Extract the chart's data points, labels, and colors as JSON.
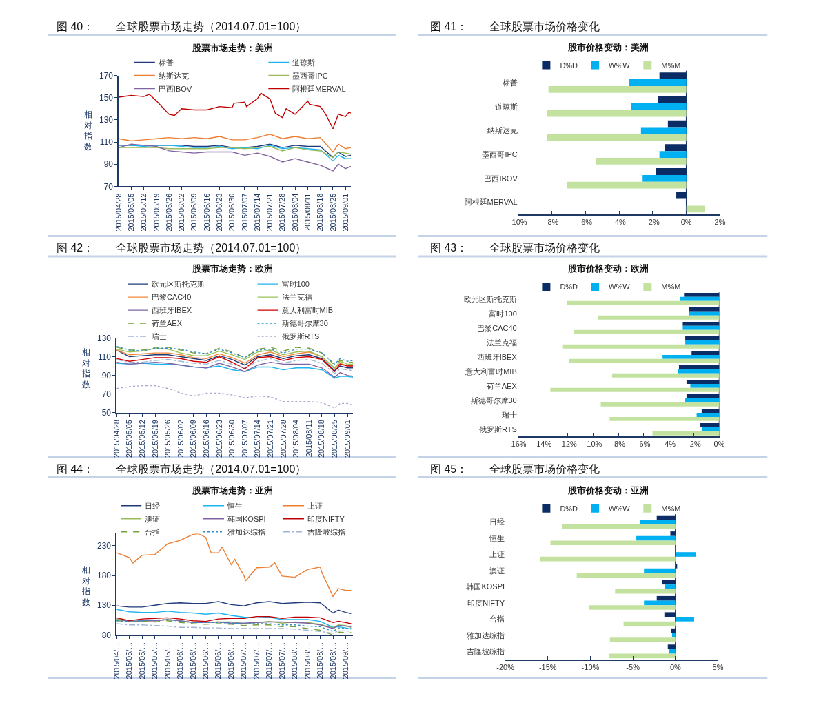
{
  "chart_data": [
    {
      "type": "line",
      "title": "图 40：　　全球股票市场走势（2014.07.01=100）",
      "subtitle": "股票市场走势：美洲",
      "ylabel": "相对指数",
      "legend": "top",
      "x": [
        "2015-04-28",
        "2015-05-05",
        "2015-05-12",
        "2015-05-19",
        "2015-05-26",
        "2015-06-02",
        "2015-06-09",
        "2015-06-16",
        "2015-06-23",
        "2015-06-30",
        "2015-07-07",
        "2015-07-14",
        "2015-07-21",
        "2015-07-28",
        "2015-08-04",
        "2015-08-11",
        "2015-08-18",
        "2015-08-25",
        "2015-08-28",
        "2015-09-01",
        "2015-09-04"
      ],
      "xlim": [
        "2015-04-28",
        "2015-09-04"
      ],
      "xticks": [
        {
          "value": "2015-04-28",
          "label": "2015/04/28"
        },
        {
          "value": "2015-05-05",
          "label": "2015/05/05"
        },
        {
          "value": "2015-05-12",
          "label": "2015/05/12"
        },
        {
          "value": "2015-05-19",
          "label": "2015/05/19"
        },
        {
          "value": "2015-05-26",
          "label": "2015/05/26"
        },
        {
          "value": "2015-06-02",
          "label": "2015/06/02"
        },
        {
          "value": "2015-06-09",
          "label": "2015/06/09"
        },
        {
          "value": "2015-06-16",
          "label": "2015/06/16"
        },
        {
          "value": "2015-06-23",
          "label": "2015/06/23"
        },
        {
          "value": "2015-06-30",
          "label": "2015/06/30"
        },
        {
          "value": "2015-07-07",
          "label": "2015/07/07"
        },
        {
          "value": "2015-07-14",
          "label": "2015/07/14"
        },
        {
          "value": "2015-07-21",
          "label": "2015/07/21"
        },
        {
          "value": "2015-07-28",
          "label": "2015/07/28"
        },
        {
          "value": "2015-08-04",
          "label": "2015/08/04"
        },
        {
          "value": "2015-08-11",
          "label": "2015/08/11"
        },
        {
          "value": "2015-08-18",
          "label": "2015/08/18"
        },
        {
          "value": "2015-08-25",
          "label": "2015/08/25"
        },
        {
          "value": "2015-09-01",
          "label": "2015/09/01"
        }
      ],
      "ylim": [
        70,
        170
      ],
      "yticks": [
        70,
        90,
        110,
        130,
        150,
        170
      ],
      "series": [
        {
          "name": "标普",
          "color": "#1f3a7a",
          "values": [
            107,
            107,
            107,
            107,
            107,
            107,
            106,
            106,
            107,
            105,
            105,
            106,
            108,
            105,
            107,
            106,
            106,
            96,
            101,
            97,
            98
          ]
        },
        {
          "name": "道琼斯",
          "color": "#1eb4f0",
          "values": [
            107,
            107,
            106,
            107,
            107,
            106,
            105,
            105,
            106,
            104,
            105,
            104,
            107,
            104,
            105,
            104,
            103,
            93,
            98,
            95,
            95
          ]
        },
        {
          "name": "纳斯达克",
          "color": "#ed7d31",
          "values": [
            113,
            111,
            112,
            113,
            114,
            113,
            114,
            113,
            115,
            112,
            112,
            114,
            117,
            113,
            115,
            113,
            114,
            101,
            108,
            104,
            105
          ]
        },
        {
          "name": "墨西哥IPC",
          "color": "#9bbb59",
          "values": [
            105,
            105,
            105,
            105,
            104,
            104,
            104,
            104,
            105,
            105,
            104,
            105,
            106,
            102,
            105,
            103,
            102,
            96,
            101,
            100,
            99
          ]
        },
        {
          "name": "巴西IBOV",
          "color": "#8064a2",
          "values": [
            105,
            108,
            107,
            106,
            102,
            101,
            100,
            101,
            101,
            101,
            98,
            100,
            97,
            92,
            95,
            92,
            89,
            84,
            90,
            86,
            88
          ]
        },
        {
          "name": "阿根廷MERVAL",
          "color": "#c00000",
          "x": [
            "2015-04-28",
            "2015-05-05",
            "2015-05-12",
            "2015-05-15",
            "2015-05-19",
            "2015-05-26",
            "2015-05-29",
            "2015-06-02",
            "2015-06-09",
            "2015-06-16",
            "2015-06-23",
            "2015-06-30",
            "2015-07-01",
            "2015-07-07",
            "2015-07-08",
            "2015-07-14",
            "2015-07-16",
            "2015-07-21",
            "2015-07-24",
            "2015-07-28",
            "2015-07-30",
            "2015-08-04",
            "2015-08-07",
            "2015-08-11",
            "2015-08-12",
            "2015-08-18",
            "2015-08-21",
            "2015-08-25",
            "2015-08-28",
            "2015-09-01",
            "2015-09-03",
            "2015-09-04"
          ],
          "values": [
            150.5,
            152,
            151,
            153,
            147,
            135,
            134,
            140,
            139,
            139,
            142,
            141,
            145,
            146,
            142,
            149,
            154,
            149,
            136,
            132,
            140,
            135,
            140,
            147,
            144,
            142,
            135,
            122,
            135,
            133,
            137,
            136
          ]
        }
      ]
    },
    {
      "type": "bar",
      "orientation": "horizontal",
      "title": "图 41：　　全球股票市场价格变化",
      "subtitle": "股市价格变动：美洲",
      "legend": "top",
      "categories": [
        "标普",
        "道琼斯",
        "纳斯达克",
        "墨西哥IPC",
        "巴西IBOV",
        "阿根廷MERVAL"
      ],
      "ref_lines": [
        {
          "axis": "x",
          "value": 0,
          "color": "#1f3864"
        }
      ],
      "xlim": [
        -10,
        2
      ],
      "xticks": [
        {
          "value": -10,
          "label": "-10%"
        },
        {
          "value": -8,
          "label": "-8%"
        },
        {
          "value": -6,
          "label": "-6%"
        },
        {
          "value": -4,
          "label": "-4%"
        },
        {
          "value": -2,
          "label": "-2%"
        },
        {
          "value": 0,
          "label": "0%"
        },
        {
          "value": 2,
          "label": "2%"
        }
      ],
      "series": [
        {
          "name": "D%D",
          "color": "#0b2c64",
          "values": [
            -1.6,
            -1.7,
            -1.1,
            -1.3,
            -1.8,
            -0.6
          ]
        },
        {
          "name": "W%W",
          "color": "#00b0f0",
          "values": [
            -3.4,
            -3.3,
            -2.7,
            -1.6,
            -2.6,
            null
          ]
        },
        {
          "name": "M%M",
          "color": "#c3e2a0",
          "values": [
            -8.2,
            -8.3,
            -8.3,
            -5.4,
            -7.1,
            1.1
          ]
        }
      ]
    },
    {
      "type": "line",
      "title": "图 42：　　全球股票市场走势（2014.07.01=100）",
      "subtitle": "股票市场走势：欧洲",
      "ylabel": "相对指数",
      "legend": "top",
      "x": [
        "2015-04-28",
        "2015-05-05",
        "2015-05-12",
        "2015-05-19",
        "2015-05-26",
        "2015-06-02",
        "2015-06-09",
        "2015-06-16",
        "2015-06-23",
        "2015-06-30",
        "2015-07-07",
        "2015-07-14",
        "2015-07-21",
        "2015-07-28",
        "2015-08-04",
        "2015-08-11",
        "2015-08-18",
        "2015-08-25",
        "2015-08-28",
        "2015-09-01",
        "2015-09-04"
      ],
      "xlim": [
        "2015-04-28",
        "2015-09-04"
      ],
      "xticks": [
        {
          "value": "2015-04-28",
          "label": "2015/04/28"
        },
        {
          "value": "2015-05-05",
          "label": "2015/05/05"
        },
        {
          "value": "2015-05-12",
          "label": "2015/05/12"
        },
        {
          "value": "2015-05-19",
          "label": "2015/05/19"
        },
        {
          "value": "2015-05-26",
          "label": "2015/05/26"
        },
        {
          "value": "2015-06-02",
          "label": "2015/06/02"
        },
        {
          "value": "2015-06-09",
          "label": "2015/06/09"
        },
        {
          "value": "2015-06-16",
          "label": "2015/06/16"
        },
        {
          "value": "2015-06-23",
          "label": "2015/06/23"
        },
        {
          "value": "2015-06-30",
          "label": "2015/06/30"
        },
        {
          "value": "2015-07-07",
          "label": "2015/07/07"
        },
        {
          "value": "2015-07-14",
          "label": "2015/07/14"
        },
        {
          "value": "2015-07-21",
          "label": "2015/07/21"
        },
        {
          "value": "2015-07-28",
          "label": "2015/07/28"
        },
        {
          "value": "2015-08-04",
          "label": "2015/08/04"
        },
        {
          "value": "2015-08-11",
          "label": "2015/08/11"
        },
        {
          "value": "2015-08-18",
          "label": "2015/08/18"
        },
        {
          "value": "2015-08-25",
          "label": "2015/08/25"
        },
        {
          "value": "2015-09-01",
          "label": "2015/09/01"
        }
      ],
      "ylim": [
        50,
        130
      ],
      "yticks": [
        50,
        70,
        90,
        110,
        130
      ],
      "series": [
        {
          "name": "欧元区斯托克斯",
          "color": "#1f3a7a",
          "values": [
            117,
            110,
            111,
            112,
            112,
            110,
            108,
            106,
            111,
            107,
            101,
            110,
            112,
            108,
            111,
            112,
            108,
            95,
            100,
            98,
            98
          ]
        },
        {
          "name": "富时100",
          "color": "#1eb4f0",
          "values": [
            103,
            102,
            103,
            102,
            102,
            101,
            99,
            98,
            100,
            96,
            94,
            99,
            99,
            96,
            98,
            98,
            96,
            87,
            89,
            89,
            88
          ]
        },
        {
          "name": "巴黎CAC40",
          "color": "#f0883a",
          "values": [
            117,
            112,
            113,
            114,
            114,
            112,
            109,
            108,
            113,
            109,
            103,
            112,
            115,
            110,
            113,
            115,
            110,
            97,
            103,
            100,
            101
          ]
        },
        {
          "name": "法兰克福",
          "color": "#9bc35a",
          "values": [
            118,
            115,
            116,
            119,
            118,
            114,
            111,
            111,
            116,
            112,
            107,
            115,
            117,
            112,
            115,
            116,
            110,
            98,
            105,
            102,
            102
          ]
        },
        {
          "name": "西班牙IBEX",
          "color": "#8064a2",
          "values": [
            104,
            102,
            103,
            104,
            103,
            101,
            99,
            98,
            103,
            99,
            94,
            101,
            104,
            102,
            102,
            102,
            98,
            88,
            93,
            90,
            89
          ]
        },
        {
          "name": "意大利富时MIB",
          "color": "#d00000",
          "values": [
            108,
            105,
            107,
            109,
            109,
            108,
            105,
            104,
            110,
            104,
            97,
            109,
            110,
            106,
            109,
            110,
            107,
            94,
            102,
            100,
            100
          ]
        },
        {
          "name": "荷兰AEX",
          "color": "#77a03a",
          "line_style": "dashed",
          "values": [
            120,
            117,
            117,
            120,
            120,
            117,
            114,
            113,
            119,
            115,
            109,
            118,
            120,
            116,
            120,
            119,
            114,
            101,
            106,
            104,
            104
          ]
        },
        {
          "name": "斯德哥尔摩30",
          "color": "#2e8fc0",
          "line_style": "dotted",
          "values": [
            121,
            117,
            116,
            119,
            119,
            118,
            115,
            113,
            118,
            114,
            109,
            117,
            118,
            114,
            118,
            118,
            114,
            102,
            108,
            105,
            106
          ]
        },
        {
          "name": "瑞士",
          "color": "#a0b4d8",
          "line_style": "dashdot",
          "values": [
            107,
            104,
            104,
            106,
            107,
            105,
            103,
            102,
            106,
            102,
            98,
            105,
            108,
            103,
            106,
            107,
            103,
            92,
            97,
            96,
            95
          ]
        },
        {
          "name": "俄罗斯RTS",
          "color": "#b3a2d0",
          "line_style": "dotted",
          "values": [
            76,
            78,
            79,
            79,
            76,
            71,
            68,
            71,
            71,
            69,
            66,
            68,
            67,
            62,
            62,
            62,
            61,
            55,
            60,
            60,
            58
          ]
        }
      ]
    },
    {
      "type": "bar",
      "orientation": "horizontal",
      "title": "图 43：　　全球股票市场价格变化",
      "subtitle": "股市价格变动：欧洲",
      "legend": "top",
      "categories": [
        "欧元区斯托克斯",
        "富时100",
        "巴黎CAC40",
        "法兰克福",
        "西班牙IBEX",
        "意大利富时MIB",
        "荷兰AEX",
        "斯德哥尔摩30",
        "瑞士",
        "俄罗斯RTS"
      ],
      "ref_lines": [
        {
          "axis": "x",
          "value": 0,
          "color": "#1f3864"
        }
      ],
      "xlim": [
        -16,
        0
      ],
      "xticks": [
        {
          "value": -16,
          "label": "-16%"
        },
        {
          "value": -14,
          "label": "-14%"
        },
        {
          "value": -12,
          "label": "-12%"
        },
        {
          "value": -10,
          "label": "-10%"
        },
        {
          "value": -8,
          "label": "-8%"
        },
        {
          "value": -6,
          "label": "-6%"
        },
        {
          "value": -4,
          "label": "-4%"
        },
        {
          "value": -2,
          "label": "-2%"
        },
        {
          "value": 0,
          "label": "0%"
        }
      ],
      "series": [
        {
          "name": "D%D",
          "color": "#0b2c64",
          "values": [
            -2.8,
            -2.4,
            -2.9,
            -2.7,
            -2.2,
            -3.2,
            -2.6,
            -2.6,
            -1.4,
            -1.5
          ]
        },
        {
          "name": "W%W",
          "color": "#00b0f0",
          "values": [
            -3.1,
            -2.4,
            -2.9,
            -2.7,
            -4.5,
            -3.3,
            -2.3,
            -2.7,
            -1.8,
            -1.4
          ]
        },
        {
          "name": "M%M",
          "color": "#c3e2a0",
          "values": [
            -12.1,
            -9.6,
            -11.5,
            -12.4,
            -11.9,
            -8.5,
            -13.4,
            -9.4,
            -8.7,
            -5.3
          ]
        }
      ]
    },
    {
      "type": "line",
      "title": "图 44：　　全球股票市场走势（2014.07.01=100）",
      "subtitle": "股票市场走势：亚洲",
      "ylabel": "相对指数",
      "legend": "top",
      "x": [
        "2015-04-28",
        "2015-05-05",
        "2015-05-12",
        "2015-05-19",
        "2015-05-26",
        "2015-06-02",
        "2015-06-09",
        "2015-06-16",
        "2015-06-23",
        "2015-06-30",
        "2015-07-07",
        "2015-07-14",
        "2015-07-21",
        "2015-07-28",
        "2015-08-04",
        "2015-08-11",
        "2015-08-18",
        "2015-08-25",
        "2015-08-28",
        "2015-09-01",
        "2015-09-04"
      ],
      "xlim": [
        "2015-04-28",
        "2015-09-05"
      ],
      "xticks": [
        {
          "value": "2015-04-28",
          "label": "2015/04/…"
        },
        {
          "value": "2015-05-05",
          "label": "2015/05/…"
        },
        {
          "value": "2015-05-12",
          "label": "2015/05/…"
        },
        {
          "value": "2015-05-19",
          "label": "2015/05/…"
        },
        {
          "value": "2015-05-26",
          "label": "2015/05/…"
        },
        {
          "value": "2015-06-02",
          "label": "2015/06/…"
        },
        {
          "value": "2015-06-09",
          "label": "2015/06/…"
        },
        {
          "value": "2015-06-16",
          "label": "2015/06/…"
        },
        {
          "value": "2015-06-23",
          "label": "2015/06/…"
        },
        {
          "value": "2015-06-30",
          "label": "2015/06/…"
        },
        {
          "value": "2015-07-07",
          "label": "2015/07/…"
        },
        {
          "value": "2015-07-14",
          "label": "2015/07/…"
        },
        {
          "value": "2015-07-21",
          "label": "2015/07/…"
        },
        {
          "value": "2015-07-28",
          "label": "2015/07/…"
        },
        {
          "value": "2015-08-04",
          "label": "2015/08/…"
        },
        {
          "value": "2015-08-11",
          "label": "2015/08/…"
        },
        {
          "value": "2015-08-18",
          "label": "2015/08/…"
        },
        {
          "value": "2015-08-25",
          "label": "2015/08/…"
        },
        {
          "value": "2015-09-01",
          "label": "2015/09/…"
        }
      ],
      "ylim": [
        80,
        250
      ],
      "yticks": [
        80,
        130,
        180,
        230
      ],
      "series": [
        {
          "name": "日经",
          "color": "#1f3a7a",
          "values": [
            129,
            127,
            127,
            130,
            133,
            134,
            133,
            133,
            136,
            131,
            129,
            134,
            136,
            133,
            134,
            135,
            134,
            117,
            122,
            118,
            116
          ]
        },
        {
          "name": "恒生",
          "color": "#1eb4f0",
          "values": [
            123,
            119,
            118,
            118,
            120,
            118,
            117,
            115,
            117,
            113,
            110,
            109,
            110,
            106,
            106,
            106,
            103,
            93,
            94,
            92,
            90
          ]
        },
        {
          "name": "上证",
          "color": "#ed7d31",
          "x": [
            "2015-04-28",
            "2015-05-05",
            "2015-05-07",
            "2015-05-12",
            "2015-05-19",
            "2015-05-26",
            "2015-06-02",
            "2015-06-09",
            "2015-06-12",
            "2015-06-16",
            "2015-06-19",
            "2015-06-23",
            "2015-06-25",
            "2015-06-30",
            "2015-07-02",
            "2015-07-07",
            "2015-07-08",
            "2015-07-14",
            "2015-07-21",
            "2015-07-24",
            "2015-07-28",
            "2015-08-04",
            "2015-08-11",
            "2015-08-18",
            "2015-08-19",
            "2015-08-25",
            "2015-08-28",
            "2015-09-01",
            "2015-09-04"
          ],
          "values": [
            218,
            210,
            201,
            214,
            215,
            233,
            239,
            249,
            250,
            244,
            218,
            218,
            228,
            198,
            207,
            180,
            171,
            193,
            194,
            201,
            179,
            177,
            190,
            194,
            184,
            145,
            158,
            155,
            155
          ]
        },
        {
          "name": "澳证",
          "color": "#9bbb59",
          "values": [
            108,
            102,
            104,
            104,
            106,
            104,
            101,
            101,
            102,
            102,
            99,
            101,
            103,
            100,
            102,
            101,
            98,
            92,
            97,
            96,
            93
          ]
        },
        {
          "name": "韩国KOSPI",
          "color": "#8064a2",
          "values": [
            106,
            103,
            104,
            104,
            106,
            104,
            101,
            101,
            102,
            100,
            100,
            101,
            102,
            102,
            101,
            100,
            97,
            91,
            96,
            95,
            94
          ]
        },
        {
          "name": "印度NIFTY",
          "color": "#c00000",
          "values": [
            109,
            104,
            107,
            108,
            109,
            107,
            104,
            103,
            107,
            108,
            108,
            111,
            111,
            108,
            110,
            110,
            109,
            101,
            103,
            101,
            99
          ]
        },
        {
          "name": "台指",
          "color": "#77a03a",
          "line_style": "dashed",
          "values": [
            104,
            103,
            103,
            102,
            104,
            101,
            99,
            98,
            99,
            98,
            96,
            97,
            97,
            94,
            94,
            91,
            88,
            80,
            85,
            84,
            84
          ]
        },
        {
          "name": "雅加达综指",
          "color": "#2e8fc0",
          "line_style": "dotted",
          "values": [
            104,
            103,
            104,
            105,
            106,
            103,
            101,
            101,
            101,
            100,
            99,
            99,
            99,
            97,
            97,
            95,
            94,
            86,
            92,
            91,
            91
          ]
        },
        {
          "name": "吉隆坡综指",
          "color": "#a0b4d8",
          "line_style": "dashdot",
          "values": [
            99,
            97,
            97,
            96,
            95,
            93,
            93,
            92,
            92,
            91,
            91,
            91,
            91,
            91,
            90,
            88,
            86,
            83,
            87,
            87,
            86
          ]
        }
      ]
    },
    {
      "type": "bar",
      "orientation": "horizontal",
      "title": "图 45：　　全球股票市场价格变化",
      "subtitle": "股市价格变动：亚洲",
      "legend": "top",
      "categories": [
        "日经",
        "恒生",
        "上证",
        "澳证",
        "韩国KOSPI",
        "印度NIFTY",
        "台指",
        "雅加达综指",
        "吉隆坡综指"
      ],
      "ref_lines": [
        {
          "axis": "x",
          "value": 0,
          "color": "#1f3864"
        }
      ],
      "xlim": [
        -20,
        5
      ],
      "xticks": [
        {
          "value": -20,
          "label": "-20%"
        },
        {
          "value": -15,
          "label": "-15%"
        },
        {
          "value": -10,
          "label": "-10%"
        },
        {
          "value": -5,
          "label": "-5%"
        },
        {
          "value": 0,
          "label": "0%"
        },
        {
          "value": 5,
          "label": "5%"
        }
      ],
      "series": [
        {
          "name": "D%D",
          "color": "#0b2c64",
          "values": [
            -2.2,
            -0.6,
            null,
            0.2,
            -1.6,
            -2.2,
            -1.3,
            -0.5,
            -0.9
          ]
        },
        {
          "name": "W%W",
          "color": "#00b0f0",
          "values": [
            -4.2,
            -4.6,
            2.4,
            -3.7,
            -1.2,
            -3.7,
            2.2,
            -0.4,
            -0.8
          ]
        },
        {
          "name": "M%M",
          "color": "#c3e2a0",
          "values": [
            -13.3,
            -14.7,
            -15.9,
            -11.6,
            -7.1,
            -10.2,
            -6.1,
            -7.7,
            -7.8
          ]
        }
      ]
    }
  ]
}
